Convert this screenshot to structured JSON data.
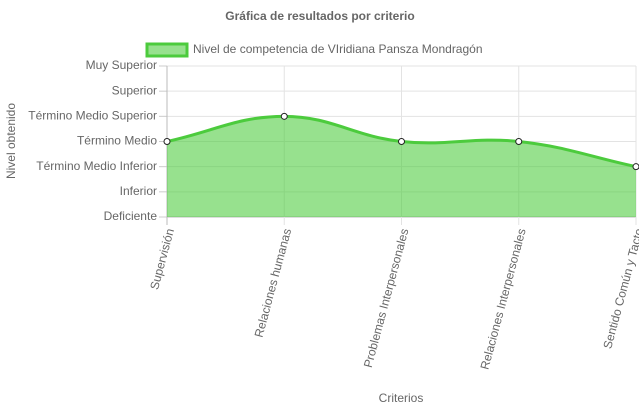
{
  "chart_data": {
    "type": "line",
    "title": "Gráfica de resultados por criterio",
    "xlabel": "Criterios",
    "ylabel": "Nivel obtenido",
    "categories": [
      "Supervisión",
      "Relaciones humanas",
      "Problemas Interpersonales",
      "Relaciones Interpersonales",
      "Sentido Común y Tacto"
    ],
    "series": [
      {
        "name": "Nivel de competencia de VIridiana Pansza Mondragón",
        "color": "#4ccb3d",
        "values": [
          3,
          4,
          3,
          3,
          2
        ]
      }
    ],
    "ylim": [
      0,
      6
    ],
    "yticks": [
      {
        "value": 0,
        "label": "Deficiente"
      },
      {
        "value": 1,
        "label": "Inferior"
      },
      {
        "value": 2,
        "label": "Término Medio Inferior"
      },
      {
        "value": 3,
        "label": "Término Medio"
      },
      {
        "value": 4,
        "label": "Término Medio Superior"
      },
      {
        "value": 5,
        "label": "Superior"
      },
      {
        "value": 6,
        "label": "Muy Superior"
      }
    ],
    "grid": true,
    "fill": true,
    "smooth": true,
    "legend": "top"
  }
}
